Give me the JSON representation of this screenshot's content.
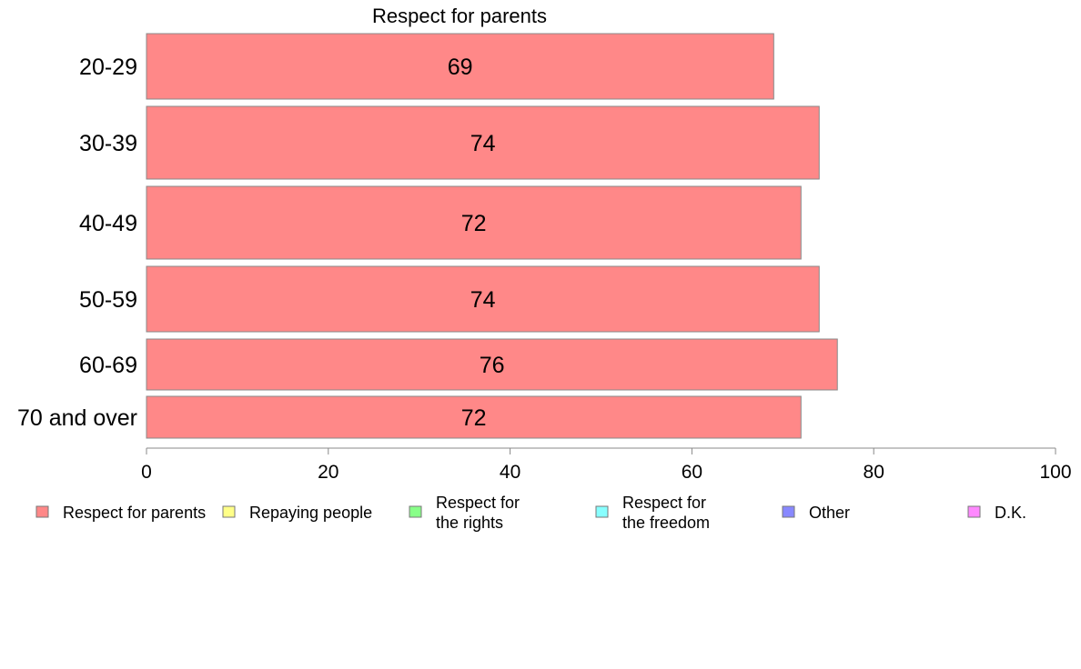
{
  "chart_data": {
    "type": "bar",
    "orientation": "horizontal",
    "title": "Respect for parents",
    "xlim": [
      0,
      100
    ],
    "xticks": [
      0,
      20,
      40,
      60,
      80,
      100
    ],
    "categories": [
      "20-29",
      "30-39",
      "40-49",
      "50-59",
      "60-69",
      "70 and over"
    ],
    "series": [
      {
        "name": "Respect for parents",
        "values": [
          69,
          74,
          72,
          74,
          76,
          72
        ]
      }
    ],
    "value_labels": [
      "69",
      "74",
      "72",
      "74",
      "76",
      "72"
    ],
    "legend": [
      {
        "lines": [
          "Respect for parents"
        ],
        "color": "#ff8888"
      },
      {
        "lines": [
          "Repaying people"
        ],
        "color": "#ffff88"
      },
      {
        "lines": [
          "Respect for",
          "the rights"
        ],
        "color": "#88ff88"
      },
      {
        "lines": [
          "Respect for",
          "the freedom"
        ],
        "color": "#88ffff"
      },
      {
        "lines": [
          "Other"
        ],
        "color": "#8888ff"
      },
      {
        "lines": [
          "D.K."
        ],
        "color": "#ff88ff"
      }
    ],
    "legend_position": "bottom",
    "bar_color": "#ff8888",
    "grid": false
  }
}
